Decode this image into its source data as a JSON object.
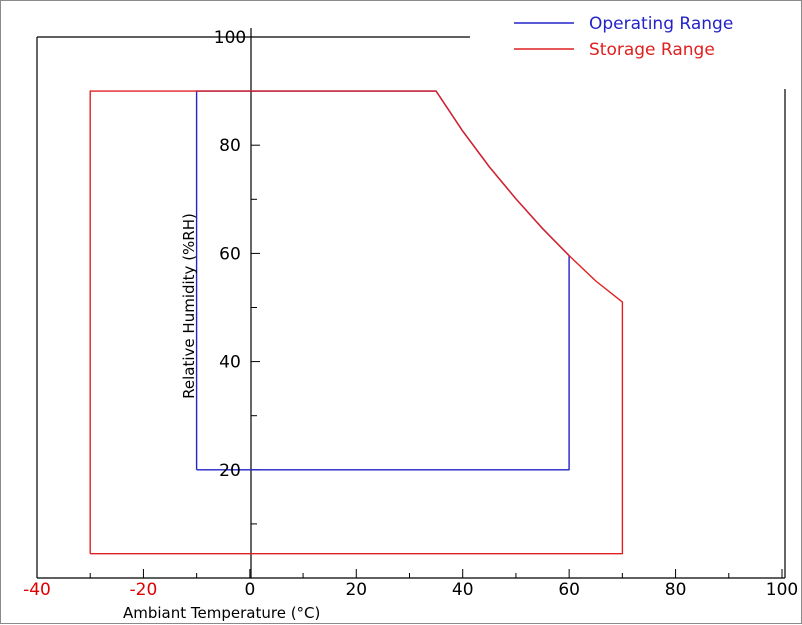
{
  "chart_data": {
    "type": "line",
    "xlabel": "Ambiant Temperature (°C)",
    "ylabel": "Relative Humidity (%RH)",
    "xlim": [
      -40,
      100
    ],
    "ylim": [
      0,
      100
    ],
    "x_ticks": [
      {
        "value": -40,
        "label": "-40",
        "color": "#e00000"
      },
      {
        "value": -20,
        "label": "-20",
        "color": "#e00000"
      },
      {
        "value": 0,
        "label": "0",
        "color": "#000000"
      },
      {
        "value": 20,
        "label": "20",
        "color": "#000000"
      },
      {
        "value": 40,
        "label": "40",
        "color": "#000000"
      },
      {
        "value": 60,
        "label": "60",
        "color": "#000000"
      },
      {
        "value": 80,
        "label": "80",
        "color": "#000000"
      },
      {
        "value": 100,
        "label": "100",
        "color": "#000000"
      }
    ],
    "y_ticks": [
      {
        "value": 20,
        "label": "20"
      },
      {
        "value": 40,
        "label": "40"
      },
      {
        "value": 60,
        "label": "60"
      },
      {
        "value": 80,
        "label": "80"
      },
      {
        "value": 100,
        "label": "100"
      }
    ],
    "grid": false,
    "legend_position": "top-right",
    "series": [
      {
        "name": "Operating Range",
        "color": "#2323c8",
        "points": [
          [
            -10,
            20
          ],
          [
            -10,
            90
          ],
          [
            35,
            90
          ],
          [
            40,
            82.6
          ],
          [
            45,
            76.0
          ],
          [
            50,
            70.1
          ],
          [
            55,
            64.6
          ],
          [
            60,
            59.6
          ],
          [
            60,
            20
          ],
          [
            -10,
            20
          ]
        ]
      },
      {
        "name": "Storage Range",
        "color": "#e02020",
        "points": [
          [
            -30,
            4.5
          ],
          [
            -30,
            90
          ],
          [
            35,
            90
          ],
          [
            40,
            82.6
          ],
          [
            45,
            76.0
          ],
          [
            50,
            70.1
          ],
          [
            55,
            64.6
          ],
          [
            60,
            59.6
          ],
          [
            65,
            54.9
          ],
          [
            70,
            51.0
          ],
          [
            70,
            4.5
          ],
          [
            -30,
            4.5
          ]
        ]
      }
    ]
  }
}
